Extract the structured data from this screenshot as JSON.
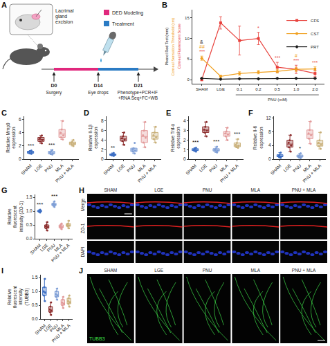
{
  "figure": {
    "A": {
      "panel": "A",
      "excision": "Lacrimal gland excision",
      "modeling": "DED Modeling",
      "treatment": "Treatment",
      "modeling_color": "#e0287d",
      "treatment_color": "#2b7bc4",
      "days": [
        "D0",
        "D14",
        "D21"
      ],
      "surgery": "Surgery",
      "eye_drops": "Eye drops",
      "endpoint": [
        "Phenotype+PCR+IF",
        "+RNA Seq+FC+WB"
      ]
    },
    "H": {
      "panel": "H",
      "columns": [
        "SHAM",
        "LGE",
        "PNU",
        "MLA",
        "PNU + MLA"
      ],
      "rows": [
        "Merge",
        "ZO-1",
        "DAPI"
      ]
    },
    "J": {
      "panel": "J",
      "columns": [
        "SHAM",
        "LGE",
        "PNU",
        "MLA",
        "PNU + MLA"
      ],
      "stain": "TUBB3"
    }
  },
  "chart_data": [
    {
      "panel": "B",
      "type": "line",
      "categories": [
        "SHAM",
        "LGE",
        "0.1",
        "0.2",
        "0.5",
        "1.0",
        "2.0"
      ],
      "group_label": {
        "text": "PNU (mM)",
        "from": "0.1",
        "to": "2.0"
      },
      "y_labels": [
        {
          "text": "Phenol Red Test (mm)",
          "color": "#1a1a1a"
        },
        {
          "text": "Corneal Sensation Threshold (cm)",
          "color": "#f0a020"
        },
        {
          "text": "Corneal Fluorescent Score",
          "color": "#e8413c"
        }
      ],
      "series": [
        {
          "name": "CFS",
          "color": "#e8413c",
          "marker": "square",
          "values": [
            0,
            13.8,
            9.5,
            10.0,
            3.0,
            2.5,
            1.5
          ],
          "errors": [
            0.3,
            1.5,
            3.5,
            1.5,
            1.2,
            1.0,
            0.8
          ]
        },
        {
          "name": "CST",
          "color": "#f0a020",
          "marker": "circle",
          "values": [
            5.2,
            0.8,
            1.5,
            1.8,
            2.0,
            2.5,
            2.6
          ],
          "errors": [
            0.5,
            0.3,
            0.4,
            0.4,
            0.4,
            0.5,
            0.5
          ]
        },
        {
          "name": "PRT",
          "color": "#1a1a1a",
          "marker": "diamond",
          "values": [
            0.3,
            0.1,
            0.2,
            0.2,
            0.3,
            0.3,
            0.3
          ],
          "errors": [
            0.1,
            0.1,
            0.1,
            0.1,
            0.1,
            0.1,
            0.1
          ]
        }
      ],
      "annotations": [
        {
          "category": "SHAM",
          "series": "CFS",
          "text": "***"
        },
        {
          "category": "SHAM",
          "series": "CST",
          "text": "##"
        },
        {
          "category": "SHAM",
          "series": "PRT",
          "text": "&"
        },
        {
          "category": "0.2",
          "series": "CFS",
          "text": "*"
        },
        {
          "category": "0.5",
          "series": "CFS",
          "text": "***"
        },
        {
          "category": "1.0",
          "series": "CFS",
          "text": "***"
        },
        {
          "category": "1.0",
          "series": "CST",
          "text": "#"
        },
        {
          "category": "2.0",
          "series": "CFS",
          "text": "***"
        }
      ],
      "ylim": [
        -1,
        17
      ],
      "yticks": [
        0,
        5,
        10,
        15
      ],
      "grid": false,
      "legend": "top right"
    },
    {
      "panel": "C",
      "type": "box",
      "y_label": "Relative Mmp9 expression",
      "categories": [
        "SHAM",
        "LGE",
        "PNU",
        "MLA",
        "PNU + MLA"
      ],
      "colors": [
        "#3d6fc4",
        "#8c2d2d",
        "#7f9fd6",
        "#e29a9a",
        "#c9b07a"
      ],
      "values": [
        [
          0.9,
          1.0,
          1.1,
          1.2,
          0.8,
          1.3
        ],
        [
          2.4,
          2.9,
          3.1,
          3.3,
          3.6,
          2.7
        ],
        [
          0.7,
          0.9,
          1.0,
          1.2,
          1.4,
          0.8
        ],
        [
          3.0,
          3.6,
          4.0,
          4.5,
          5.8,
          3.3
        ],
        [
          2.0,
          2.3,
          2.5,
          2.6,
          2.9,
          2.2
        ]
      ],
      "annotations": [
        {
          "category": "SHAM",
          "text": "***"
        },
        {
          "category": "PNU",
          "text": "***"
        }
      ],
      "ylim": [
        0,
        6.5
      ],
      "yticks": [
        0,
        2,
        4,
        6
      ],
      "grid": false
    },
    {
      "panel": "D",
      "type": "box",
      "y_label": "Relative Il-1β expression",
      "categories": [
        "SHAM",
        "LGE",
        "PNU",
        "MLA",
        "PNU + MLA"
      ],
      "colors": [
        "#3d6fc4",
        "#8c2d2d",
        "#7f9fd6",
        "#e29a9a",
        "#c9b07a"
      ],
      "values": [
        [
          0.7,
          0.9,
          1.0,
          1.1,
          1.3,
          0.8
        ],
        [
          3.0,
          3.8,
          4.4,
          4.8,
          5.6,
          4.1
        ],
        [
          1.2,
          1.6,
          2.0,
          2.3,
          3.4,
          1.8
        ],
        [
          2.5,
          3.5,
          5.0,
          6.0,
          7.8,
          4.5
        ],
        [
          3.5,
          4.2,
          5.0,
          5.6,
          6.8,
          4.6
        ]
      ],
      "annotations": [
        {
          "category": "SHAM",
          "text": "**"
        }
      ],
      "ylim": [
        0,
        9
      ],
      "yticks": [
        0,
        2,
        4,
        6,
        8
      ],
      "grid": false
    },
    {
      "panel": "E",
      "type": "box",
      "y_label": "Relative Tnf-α expression",
      "categories": [
        "SHAM",
        "LGE",
        "PNU",
        "MLA",
        "PNU + MLA"
      ],
      "colors": [
        "#3d6fc4",
        "#8c2d2d",
        "#7f9fd6",
        "#e29a9a",
        "#c9b07a"
      ],
      "values": [
        [
          0.8,
          0.9,
          1.0,
          1.1,
          1.2,
          0.95
        ],
        [
          2.4,
          2.8,
          3.1,
          3.4,
          3.9,
          3.0
        ],
        [
          0.7,
          0.9,
          1.0,
          1.1,
          1.3,
          0.85
        ],
        [
          2.0,
          2.4,
          2.7,
          2.9,
          3.3,
          2.6
        ],
        [
          1.2,
          1.3,
          1.5,
          1.7,
          2.1,
          1.4
        ]
      ],
      "annotations": [
        {
          "category": "SHAM",
          "text": "***"
        },
        {
          "category": "PNU",
          "text": "***"
        },
        {
          "category": "PNU + MLA",
          "text": "***"
        }
      ],
      "ylim": [
        0,
        4.5
      ],
      "yticks": [
        0,
        1,
        2,
        3,
        4
      ],
      "grid": false
    },
    {
      "panel": "F",
      "type": "box",
      "y_label": "Relative Il-6 expression",
      "categories": [
        "SHAM",
        "LGE",
        "PNU",
        "MLA",
        "PNU + MLA"
      ],
      "colors": [
        "#3d6fc4",
        "#8c2d2d",
        "#7f9fd6",
        "#e29a9a",
        "#c9b07a"
      ],
      "values": [
        [
          0.4,
          0.7,
          1.0,
          1.3,
          1.9,
          0.8
        ],
        [
          2.2,
          3.5,
          4.8,
          5.5,
          7.0,
          4.0
        ],
        [
          0.3,
          0.6,
          0.9,
          1.2,
          1.7,
          0.7
        ],
        [
          4.5,
          6.0,
          7.5,
          8.5,
          11.0,
          7.0
        ],
        [
          3.0,
          3.8,
          4.8,
          5.5,
          7.8,
          4.2
        ]
      ],
      "annotations": [
        {
          "category": "PNU",
          "text": "*"
        }
      ],
      "ylim": [
        0,
        12.5
      ],
      "yticks": [
        0,
        4,
        8,
        12
      ],
      "grid": false
    },
    {
      "panel": "G",
      "type": "box",
      "y_label": "Relative fluorescent intensity (ZO-1)",
      "categories": [
        "SHAM",
        "LGE",
        "PNU",
        "MLA",
        "PNU + MLA"
      ],
      "colors": [
        "#3d6fc4",
        "#8c2d2d",
        "#7f9fd6",
        "#e29a9a",
        "#c9b07a"
      ],
      "values": [
        [
          0.95,
          0.98,
          1.0,
          1.02,
          1.05,
          1.0
        ],
        [
          0.3,
          0.38,
          0.45,
          0.5,
          0.6,
          0.42
        ],
        [
          1.15,
          1.2,
          1.25,
          1.28,
          1.35,
          1.22
        ],
        [
          0.35,
          0.4,
          0.45,
          0.5,
          0.55,
          0.42
        ],
        [
          0.38,
          0.45,
          0.5,
          0.55,
          0.65,
          0.48
        ]
      ],
      "annotations": [
        {
          "category": "SHAM",
          "text": "***"
        },
        {
          "category": "PNU",
          "text": "***"
        }
      ],
      "ylim": [
        0,
        1.6
      ],
      "yticks": [
        {
          "value": 0,
          "label": "0.0"
        },
        0.5,
        {
          "value": 1,
          "label": "1.0"
        },
        1.5
      ],
      "grid": false
    },
    {
      "panel": "I",
      "type": "box",
      "y_label": "Relative fluorescent intensity (TUBB3)",
      "categories": [
        "SHAM",
        "LGE",
        "PNU",
        "MLA",
        "PNU + MLA"
      ],
      "colors": [
        "#3d6fc4",
        "#8c2d2d",
        "#7f9fd6",
        "#e29a9a",
        "#c9b07a"
      ],
      "values": [
        [
          0.65,
          0.85,
          1.0,
          1.15,
          1.45,
          0.95
        ],
        [
          0.15,
          0.25,
          0.35,
          0.45,
          0.6,
          0.3
        ],
        [
          0.7,
          0.8,
          0.9,
          1.0,
          1.1,
          0.85
        ],
        [
          0.4,
          0.5,
          0.6,
          0.7,
          0.8,
          0.55
        ],
        [
          0.45,
          0.55,
          0.65,
          0.75,
          0.85,
          0.6
        ]
      ],
      "annotations": [],
      "ylim": [
        0,
        1.6
      ],
      "yticks": [
        {
          "value": 0,
          "label": "0.0"
        },
        0.5,
        {
          "value": 1,
          "label": "1.0"
        },
        1.5
      ],
      "grid": false
    }
  ]
}
